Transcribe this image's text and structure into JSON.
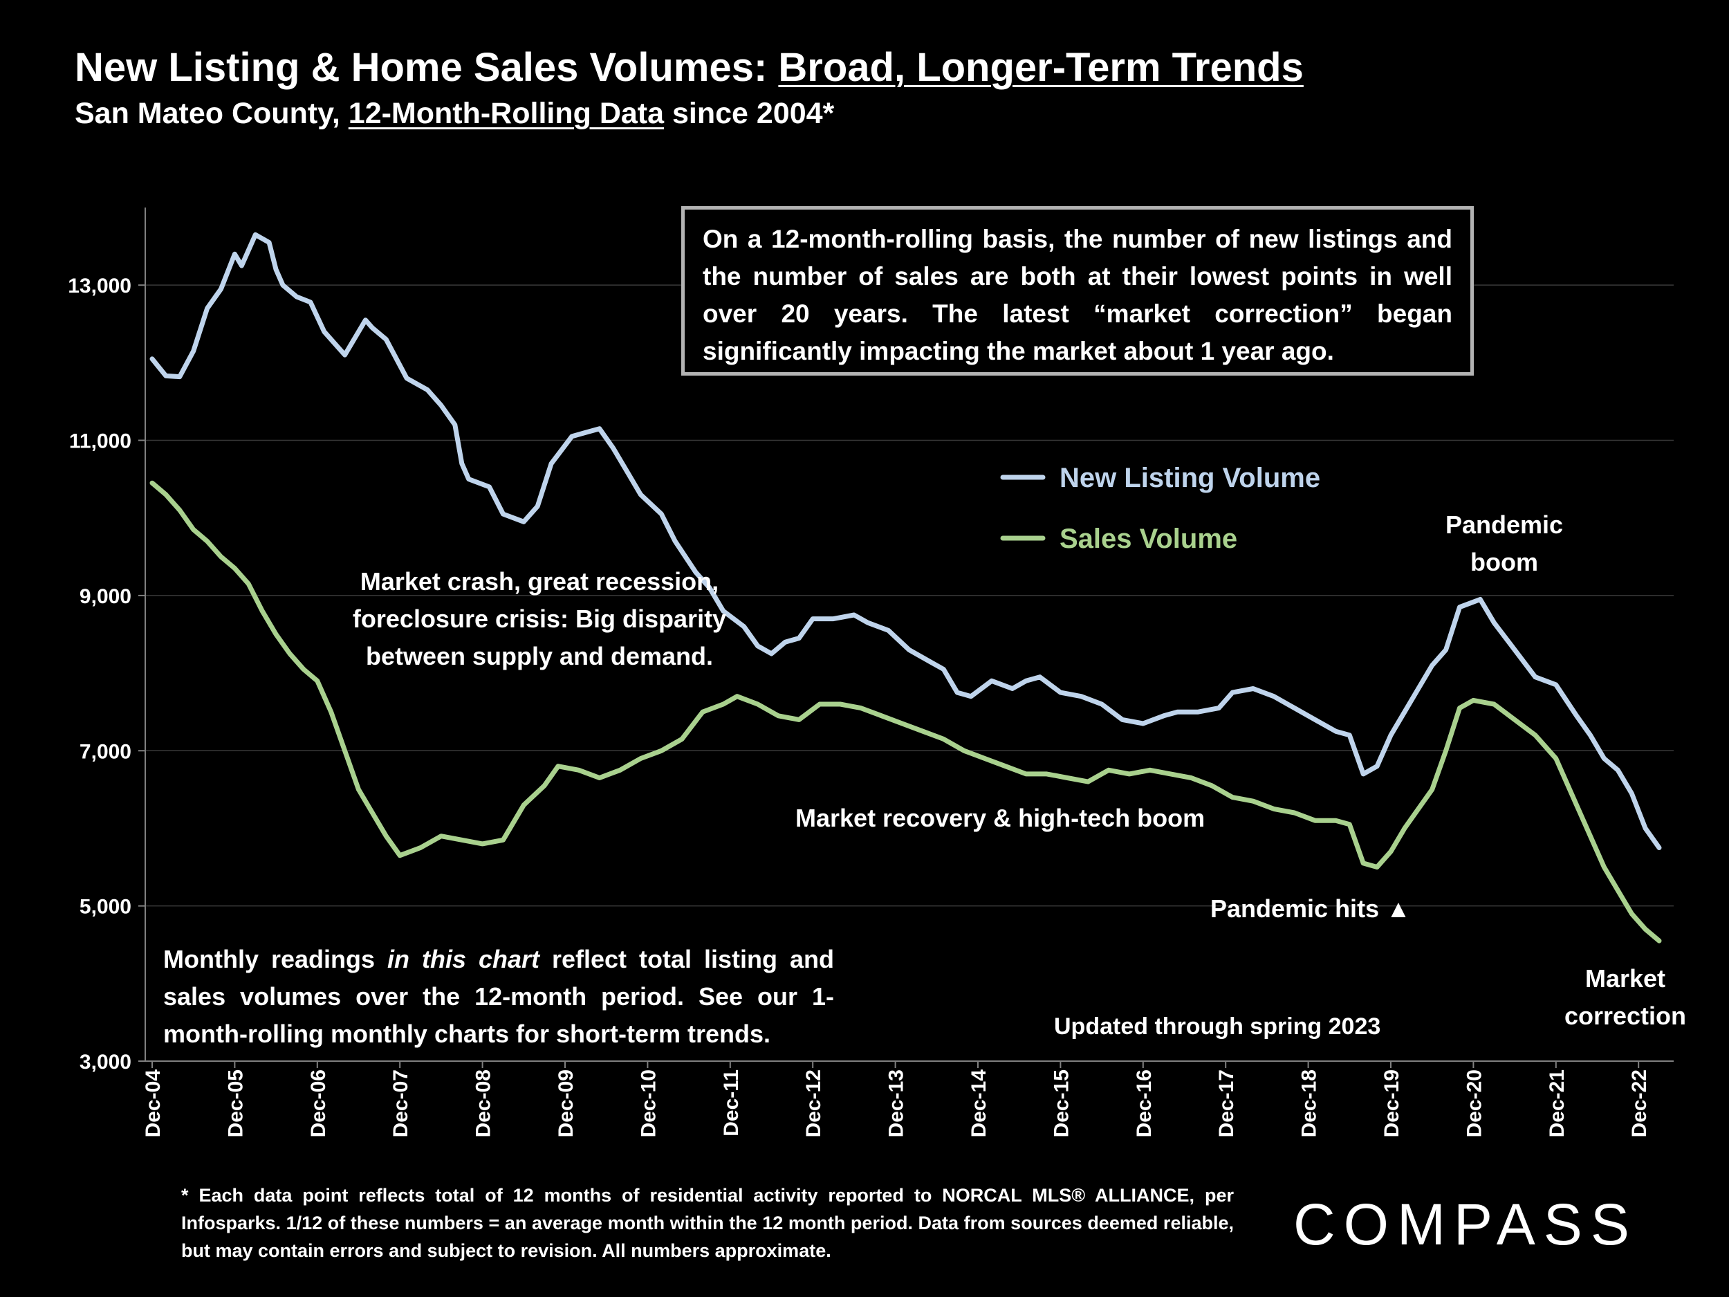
{
  "title": {
    "prefix": "New Listing & Home Sales Volumes: ",
    "underlined": "Broad, Longer-Term Trends"
  },
  "subtitle": {
    "prefix": "San Mateo County, ",
    "underlined": "12-Month-Rolling Data",
    "suffix": " since 2004*"
  },
  "callout_text": "On a 12-month-rolling basis, the number of new listings and the number of sales are both at their lowest points in well over 20 years. The latest “market correction” began significantly impacting the market about 1 year ago.",
  "annotations": {
    "crash": "Market crash, great recession, foreclosure crisis: Big disparity between supply and demand.",
    "recovery": "Market recovery & high-tech boom",
    "pandemic_hits": "Pandemic hits ▲",
    "pandemic_boom": "Pandemic boom",
    "correction": "Market correction",
    "updated": "Updated through spring 2023"
  },
  "monthly_note": {
    "part1": "Monthly readings ",
    "italic": "in this chart",
    "part2": " reflect total listing and sales volumes over the 12-month period. See our 1-month-rolling monthly charts for short-term trends."
  },
  "footnote": "* Each data point reflects total of 12 months of residential activity reported to NORCAL MLS® ALLIANCE, per Infosparks. 1/12 of these numbers = an average month within the 12 month period. Data from sources deemed reliable, but may contain errors and subject to revision. All numbers approximate.",
  "logo": "COMPASS",
  "colors": {
    "background": "#000000",
    "new_listing": "#bfd4ec",
    "sales": "#a9d18e",
    "axis": "#808080",
    "grid": "#3a3a3a",
    "text": "#ffffff"
  },
  "chart_data": {
    "type": "line",
    "ylim": [
      3000,
      14000
    ],
    "y_ticks": [
      3000,
      5000,
      7000,
      9000,
      11000,
      13000
    ],
    "y_tick_labels": [
      "3,000",
      "5,000",
      "7,000",
      "9,000",
      "11,000",
      "13,000"
    ],
    "x_tick_labels": [
      "Dec-04",
      "Dec-05",
      "Dec-06",
      "Dec-07",
      "Dec-08",
      "Dec-09",
      "Dec-10",
      "Dec-11",
      "Dec-12",
      "Dec-13",
      "Dec-14",
      "Dec-15",
      "Dec-16",
      "Dec-17",
      "Dec-18",
      "Dec-19",
      "Dec-20",
      "Dec-21",
      "Dec-22"
    ],
    "x_start": "2004-12",
    "x_end": "2023-03",
    "grid": "horizontal",
    "legend_placement": "upper-right",
    "series": [
      {
        "name": "New Listing Volume",
        "points": [
          [
            "2004-12",
            12050
          ],
          [
            "2005-02",
            11830
          ],
          [
            "2005-04",
            11820
          ],
          [
            "2005-06",
            12150
          ],
          [
            "2005-08",
            12700
          ],
          [
            "2005-10",
            12950
          ],
          [
            "2005-12",
            13400
          ],
          [
            "2006-01",
            13250
          ],
          [
            "2006-03",
            13650
          ],
          [
            "2006-05",
            13550
          ],
          [
            "2006-06",
            13200
          ],
          [
            "2006-07",
            13000
          ],
          [
            "2006-09",
            12850
          ],
          [
            "2006-11",
            12780
          ],
          [
            "2007-01",
            12400
          ],
          [
            "2007-04",
            12100
          ],
          [
            "2007-06",
            12400
          ],
          [
            "2007-07",
            12550
          ],
          [
            "2007-08",
            12450
          ],
          [
            "2007-10",
            12300
          ],
          [
            "2008-01",
            11800
          ],
          [
            "2008-04",
            11650
          ],
          [
            "2008-06",
            11450
          ],
          [
            "2008-08",
            11200
          ],
          [
            "2008-09",
            10700
          ],
          [
            "2008-10",
            10500
          ],
          [
            "2009-01",
            10400
          ],
          [
            "2009-03",
            10050
          ],
          [
            "2009-06",
            9950
          ],
          [
            "2009-08",
            10150
          ],
          [
            "2009-10",
            10700
          ],
          [
            "2010-01",
            11050
          ],
          [
            "2010-03",
            11100
          ],
          [
            "2010-05",
            11150
          ],
          [
            "2010-07",
            10900
          ],
          [
            "2010-09",
            10600
          ],
          [
            "2010-11",
            10300
          ],
          [
            "2011-02",
            10050
          ],
          [
            "2011-04",
            9700
          ],
          [
            "2011-07",
            9300
          ],
          [
            "2011-09",
            9100
          ],
          [
            "2011-11",
            8800
          ],
          [
            "2012-02",
            8600
          ],
          [
            "2012-04",
            8350
          ],
          [
            "2012-06",
            8250
          ],
          [
            "2012-08",
            8400
          ],
          [
            "2012-10",
            8450
          ],
          [
            "2012-12",
            8700
          ],
          [
            "2013-03",
            8700
          ],
          [
            "2013-06",
            8750
          ],
          [
            "2013-08",
            8650
          ],
          [
            "2013-11",
            8550
          ],
          [
            "2014-02",
            8300
          ],
          [
            "2014-05",
            8150
          ],
          [
            "2014-07",
            8050
          ],
          [
            "2014-09",
            7750
          ],
          [
            "2014-11",
            7700
          ],
          [
            "2015-02",
            7900
          ],
          [
            "2015-05",
            7800
          ],
          [
            "2015-07",
            7900
          ],
          [
            "2015-09",
            7950
          ],
          [
            "2015-12",
            7750
          ],
          [
            "2016-03",
            7700
          ],
          [
            "2016-06",
            7600
          ],
          [
            "2016-09",
            7400
          ],
          [
            "2016-12",
            7350
          ],
          [
            "2017-03",
            7450
          ],
          [
            "2017-05",
            7500
          ],
          [
            "2017-08",
            7500
          ],
          [
            "2017-11",
            7550
          ],
          [
            "2018-01",
            7750
          ],
          [
            "2018-04",
            7800
          ],
          [
            "2018-07",
            7700
          ],
          [
            "2018-10",
            7550
          ],
          [
            "2019-01",
            7400
          ],
          [
            "2019-04",
            7250
          ],
          [
            "2019-06",
            7200
          ],
          [
            "2019-08",
            6700
          ],
          [
            "2019-10",
            6800
          ],
          [
            "2019-12",
            7200
          ],
          [
            "2020-02",
            7500
          ],
          [
            "2020-04",
            7800
          ],
          [
            "2020-06",
            8100
          ],
          [
            "2020-08",
            8300
          ],
          [
            "2020-10",
            8850
          ],
          [
            "2021-01",
            8950
          ],
          [
            "2021-03",
            8650
          ],
          [
            "2021-06",
            8300
          ],
          [
            "2021-09",
            7950
          ],
          [
            "2021-12",
            7850
          ],
          [
            "2022-03",
            7450
          ],
          [
            "2022-05",
            7200
          ],
          [
            "2022-07",
            6900
          ],
          [
            "2022-09",
            6750
          ],
          [
            "2022-11",
            6450
          ],
          [
            "2023-01",
            6000
          ],
          [
            "2023-03",
            5750
          ]
        ]
      },
      {
        "name": "Sales Volume",
        "points": [
          [
            "2004-12",
            10450
          ],
          [
            "2005-02",
            10300
          ],
          [
            "2005-04",
            10100
          ],
          [
            "2005-06",
            9850
          ],
          [
            "2005-08",
            9700
          ],
          [
            "2005-10",
            9500
          ],
          [
            "2005-12",
            9350
          ],
          [
            "2006-02",
            9150
          ],
          [
            "2006-04",
            8800
          ],
          [
            "2006-06",
            8500
          ],
          [
            "2006-08",
            8250
          ],
          [
            "2006-10",
            8050
          ],
          [
            "2006-12",
            7900
          ],
          [
            "2007-02",
            7500
          ],
          [
            "2007-04",
            7000
          ],
          [
            "2007-06",
            6500
          ],
          [
            "2007-08",
            6200
          ],
          [
            "2007-10",
            5900
          ],
          [
            "2007-12",
            5650
          ],
          [
            "2008-03",
            5750
          ],
          [
            "2008-06",
            5900
          ],
          [
            "2008-09",
            5850
          ],
          [
            "2008-12",
            5800
          ],
          [
            "2009-03",
            5850
          ],
          [
            "2009-06",
            6300
          ],
          [
            "2009-09",
            6550
          ],
          [
            "2009-11",
            6800
          ],
          [
            "2010-02",
            6750
          ],
          [
            "2010-05",
            6650
          ],
          [
            "2010-08",
            6750
          ],
          [
            "2010-11",
            6900
          ],
          [
            "2011-02",
            7000
          ],
          [
            "2011-05",
            7150
          ],
          [
            "2011-08",
            7500
          ],
          [
            "2011-11",
            7600
          ],
          [
            "2012-01",
            7700
          ],
          [
            "2012-04",
            7600
          ],
          [
            "2012-07",
            7450
          ],
          [
            "2012-10",
            7400
          ],
          [
            "2013-01",
            7600
          ],
          [
            "2013-04",
            7600
          ],
          [
            "2013-07",
            7550
          ],
          [
            "2013-10",
            7450
          ],
          [
            "2014-01",
            7350
          ],
          [
            "2014-04",
            7250
          ],
          [
            "2014-07",
            7150
          ],
          [
            "2014-10",
            7000
          ],
          [
            "2015-01",
            6900
          ],
          [
            "2015-04",
            6800
          ],
          [
            "2015-07",
            6700
          ],
          [
            "2015-10",
            6700
          ],
          [
            "2016-01",
            6650
          ],
          [
            "2016-04",
            6600
          ],
          [
            "2016-07",
            6750
          ],
          [
            "2016-10",
            6700
          ],
          [
            "2017-01",
            6750
          ],
          [
            "2017-04",
            6700
          ],
          [
            "2017-07",
            6650
          ],
          [
            "2017-10",
            6550
          ],
          [
            "2018-01",
            6400
          ],
          [
            "2018-04",
            6350
          ],
          [
            "2018-07",
            6250
          ],
          [
            "2018-10",
            6200
          ],
          [
            "2019-01",
            6100
          ],
          [
            "2019-04",
            6100
          ],
          [
            "2019-06",
            6050
          ],
          [
            "2019-08",
            5550
          ],
          [
            "2019-10",
            5500
          ],
          [
            "2019-12",
            5700
          ],
          [
            "2020-02",
            6000
          ],
          [
            "2020-04",
            6250
          ],
          [
            "2020-06",
            6500
          ],
          [
            "2020-08",
            7000
          ],
          [
            "2020-10",
            7550
          ],
          [
            "2020-12",
            7650
          ],
          [
            "2021-03",
            7600
          ],
          [
            "2021-06",
            7400
          ],
          [
            "2021-09",
            7200
          ],
          [
            "2021-12",
            6900
          ],
          [
            "2022-03",
            6300
          ],
          [
            "2022-05",
            5900
          ],
          [
            "2022-07",
            5500
          ],
          [
            "2022-09",
            5200
          ],
          [
            "2022-11",
            4900
          ],
          [
            "2023-01",
            4700
          ],
          [
            "2023-03",
            4550
          ]
        ]
      }
    ]
  }
}
